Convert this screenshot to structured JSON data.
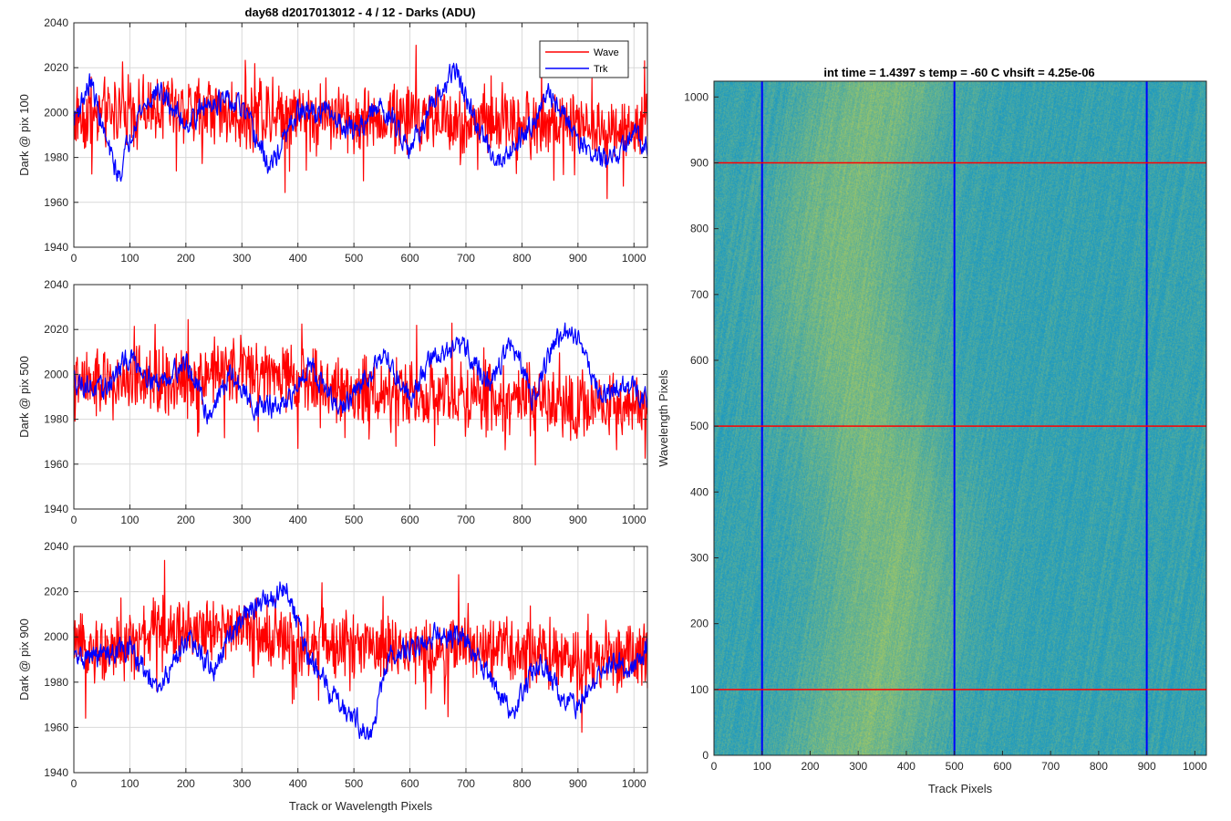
{
  "figure": {
    "left_title": "day68 d2017013012 - 4 / 12 - Darks (ADU)",
    "right_title": "int time = 1.4397 s   temp = -60 C   vhsift = 4.25e-06"
  },
  "colors": {
    "wave": "#ff0000",
    "trk": "#0000ff",
    "grid": "#d9d9d9",
    "axis": "#262626",
    "heat_low": "#1f9ac0",
    "heat_high": "#b8cf55"
  },
  "chart_data": [
    {
      "type": "line",
      "title": "day68 d2017013012 - 4 / 12 - Darks (ADU)",
      "xlabel": "",
      "ylabel": "Dark @ pix 100",
      "xlim": [
        0,
        1024
      ],
      "ylim": [
        1940,
        2040
      ],
      "xticks": [
        "0",
        "100",
        "200",
        "300",
        "400",
        "500",
        "600",
        "700",
        "800",
        "900",
        "1000"
      ],
      "yticks": [
        "1940",
        "1960",
        "1980",
        "2000",
        "2020",
        "2040"
      ],
      "grid": true,
      "legend": {
        "position": "top-right",
        "entries": [
          "Wave",
          "Trk"
        ]
      },
      "series": [
        {
          "name": "Wave",
          "color": "#ff0000",
          "mean": 2000,
          "noise": 11,
          "x": [
            0,
            100,
            200,
            300,
            400,
            500,
            600,
            700,
            800,
            900,
            1000,
            1023
          ],
          "y": [
            1998,
            2001,
            2002,
            1999,
            2000,
            1997,
            1998,
            1996,
            1996,
            1994,
            1993,
            1994
          ]
        },
        {
          "name": "Trk",
          "color": "#0000ff",
          "mean": 2000,
          "noise": 3,
          "x": [
            0,
            30,
            60,
            80,
            110,
            150,
            200,
            250,
            300,
            350,
            400,
            450,
            500,
            550,
            600,
            650,
            680,
            720,
            760,
            800,
            850,
            880,
            920,
            960,
            1000,
            1023
          ],
          "y": [
            1997,
            2014,
            1985,
            1971,
            1998,
            2010,
            1995,
            2006,
            2002,
            1975,
            2000,
            2000,
            1992,
            2003,
            1985,
            2006,
            2020,
            1993,
            1978,
            1990,
            2008,
            1997,
            1982,
            1978,
            1990,
            1987
          ]
        }
      ]
    },
    {
      "type": "line",
      "title": "",
      "xlabel": "",
      "ylabel": "Dark @ pix 500",
      "xlim": [
        0,
        1024
      ],
      "ylim": [
        1940,
        2040
      ],
      "xticks": [
        "0",
        "100",
        "200",
        "300",
        "400",
        "500",
        "600",
        "700",
        "800",
        "900",
        "1000"
      ],
      "yticks": [
        "1940",
        "1960",
        "1980",
        "2000",
        "2020",
        "2040"
      ],
      "grid": true,
      "series": [
        {
          "name": "Wave",
          "color": "#ff0000",
          "mean": 1995,
          "noise": 11,
          "x": [
            0,
            100,
            200,
            300,
            400,
            500,
            600,
            700,
            800,
            900,
            1000,
            1023
          ],
          "y": [
            1995,
            1996,
            1998,
            2003,
            1998,
            1993,
            1992,
            1989,
            1990,
            1986,
            1987,
            1988
          ]
        },
        {
          "name": "Trk",
          "color": "#0000ff",
          "mean": 1995,
          "noise": 3,
          "x": [
            0,
            50,
            100,
            150,
            200,
            240,
            280,
            320,
            380,
            420,
            470,
            500,
            550,
            600,
            640,
            700,
            740,
            780,
            820,
            860,
            900,
            940,
            980,
            1023
          ],
          "y": [
            1998,
            1992,
            2008,
            1996,
            2006,
            1982,
            2000,
            1986,
            1985,
            2006,
            1984,
            1990,
            2010,
            1990,
            2008,
            2012,
            1995,
            2014,
            1990,
            2016,
            2018,
            1990,
            1995,
            1990
          ]
        }
      ]
    },
    {
      "type": "line",
      "title": "",
      "xlabel": "Track or Wavelength Pixels",
      "ylabel": "Dark @ pix 900",
      "xlim": [
        0,
        1024
      ],
      "ylim": [
        1940,
        2040
      ],
      "xticks": [
        "0",
        "100",
        "200",
        "300",
        "400",
        "500",
        "600",
        "700",
        "800",
        "900",
        "1000"
      ],
      "yticks": [
        "1940",
        "1960",
        "1980",
        "2000",
        "2020",
        "2040"
      ],
      "grid": true,
      "series": [
        {
          "name": "Wave",
          "color": "#ff0000",
          "mean": 1995,
          "noise": 10,
          "x": [
            0,
            100,
            150,
            200,
            300,
            400,
            500,
            600,
            700,
            800,
            900,
            1000,
            1023
          ],
          "y": [
            1995,
            1995,
            2005,
            2002,
            2004,
            1996,
            1997,
            1994,
            1997,
            1992,
            1990,
            1991,
            1990
          ]
        },
        {
          "name": "Trk",
          "color": "#0000ff",
          "mean": 1995,
          "noise": 3,
          "x": [
            0,
            50,
            100,
            150,
            200,
            250,
            300,
            350,
            380,
            420,
            460,
            500,
            530,
            560,
            600,
            650,
            700,
            740,
            780,
            830,
            870,
            900,
            950,
            1000,
            1023
          ],
          "y": [
            1990,
            1992,
            1995,
            1975,
            2000,
            1985,
            2010,
            2016,
            2022,
            1990,
            1975,
            1965,
            1955,
            1990,
            1995,
            2002,
            1998,
            1985,
            1965,
            1990,
            1975,
            1968,
            1990,
            1985,
            1996
          ]
        }
      ]
    },
    {
      "type": "heatmap",
      "title": "int time = 1.4397 s   temp = -60 C   vhsift = 4.25e-06",
      "xlabel": "Track Pixels",
      "ylabel": "Wavelength Pixels",
      "xlim": [
        0,
        1024
      ],
      "ylim": [
        0,
        1024
      ],
      "xticks": [
        "0",
        "100",
        "200",
        "300",
        "400",
        "500",
        "600",
        "700",
        "800",
        "900",
        "1000"
      ],
      "yticks": [
        "0",
        "100",
        "200",
        "300",
        "400",
        "500",
        "600",
        "700",
        "800",
        "900",
        "1000"
      ],
      "grid": false,
      "vertical_markers": [
        100,
        500,
        900
      ],
      "horizontal_markers": [
        100,
        500,
        900
      ]
    }
  ]
}
